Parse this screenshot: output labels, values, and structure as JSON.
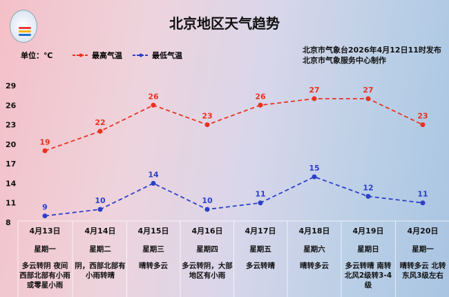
{
  "header": {
    "title": "北京地区天气趋势",
    "unit": "单位：℃",
    "publish": "北京市气象台2026年4月12日11时发布",
    "producer": "北京市气象服务中心制作"
  },
  "legend": {
    "high": "最高气温",
    "low": "最低气温"
  },
  "colors": {
    "high": "#e8321e",
    "low": "#2a3fc8"
  },
  "chart_data": {
    "type": "line",
    "categories": [
      "4月13日",
      "4月14日",
      "4月15日",
      "4月16日",
      "4月17日",
      "4月18日",
      "4月19日",
      "4月20日"
    ],
    "series": [
      {
        "name": "最高气温",
        "values": [
          19,
          22,
          26,
          23,
          26,
          27,
          27,
          23
        ]
      },
      {
        "name": "最低气温",
        "values": [
          9,
          10,
          14,
          10,
          11,
          15,
          12,
          11
        ]
      }
    ],
    "yticks": [
      29,
      26,
      23,
      20,
      17,
      14,
      11,
      8
    ],
    "ylim": [
      8,
      29
    ],
    "grid": false
  },
  "days": [
    {
      "date": "4月13日",
      "week": "星期一",
      "desc": "多云转阴 夜间西部北部有小雨或零星小雨"
    },
    {
      "date": "4月14日",
      "week": "星期二",
      "desc": "阴，西部北部有小雨转晴"
    },
    {
      "date": "4月15日",
      "week": "星期三",
      "desc": "晴转多云"
    },
    {
      "date": "4月16日",
      "week": "星期四",
      "desc": "多云转阴，大部地区有小雨"
    },
    {
      "date": "4月17日",
      "week": "星期五",
      "desc": "多云转晴"
    },
    {
      "date": "4月18日",
      "week": "星期六",
      "desc": "晴转多云"
    },
    {
      "date": "4月19日",
      "week": "星期日",
      "desc": "多云转晴 南转北风2级转3-4级"
    },
    {
      "date": "4月20日",
      "week": "星期一",
      "desc": "晴转多云 北转东风3级左右"
    }
  ]
}
